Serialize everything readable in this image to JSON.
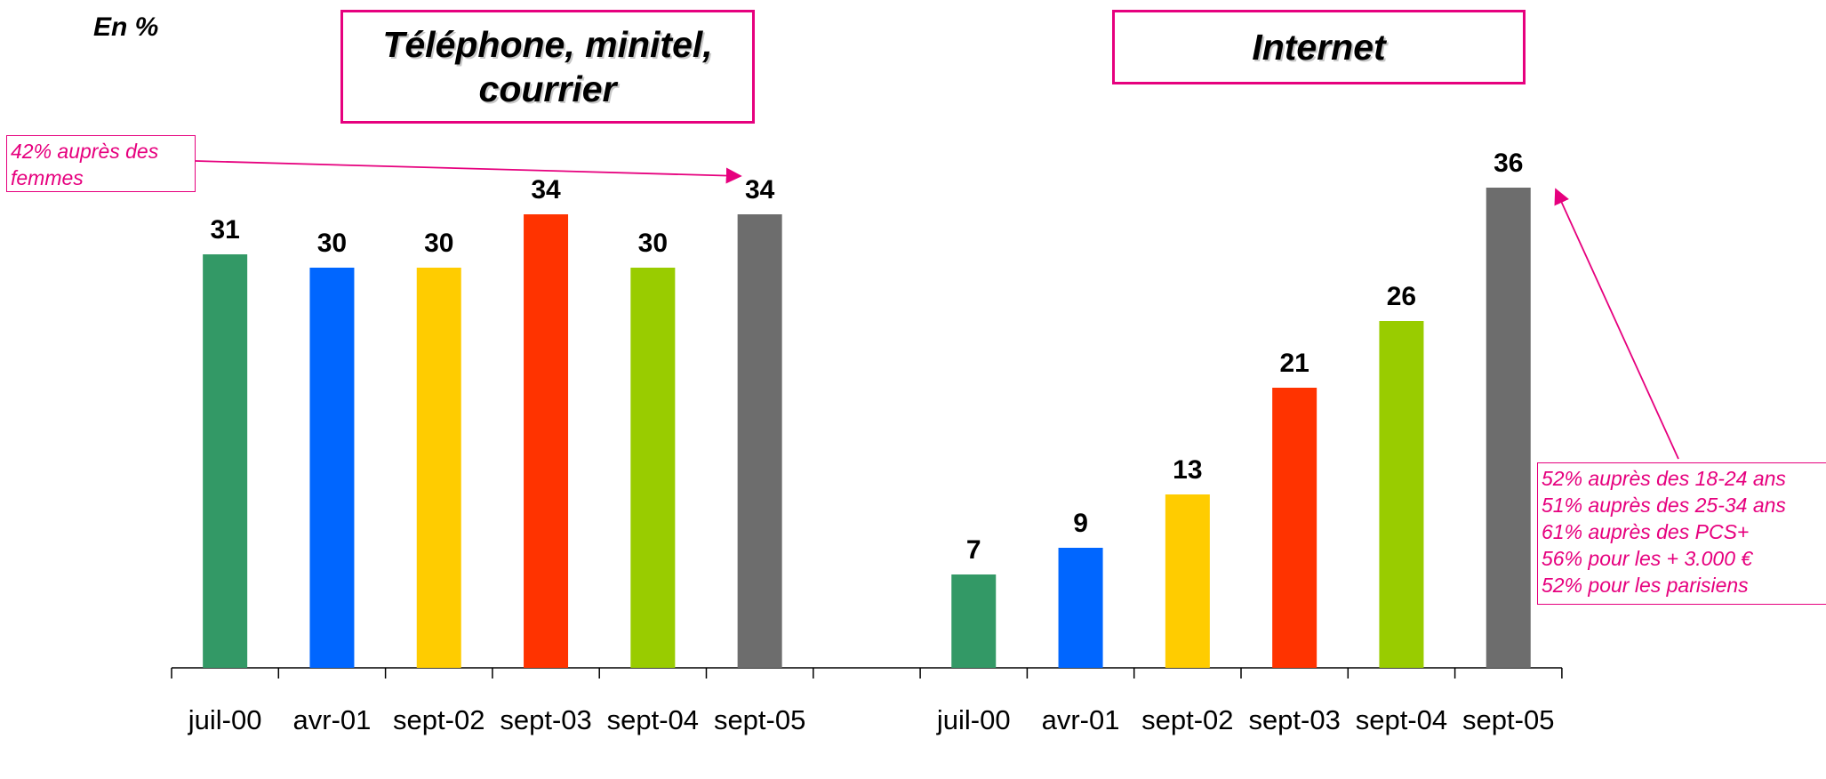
{
  "unit_label": "En %",
  "panel_titles": {
    "left": "Téléphone, minitel, courrier",
    "right": "Internet"
  },
  "annotations": {
    "left": [
      "42% auprès des",
      "femmes"
    ],
    "right": [
      "52% auprès des 18-24 ans",
      "51% auprès des 25-34 ans",
      "61% auprès des PCS+",
      "56% pour les + 3.000 €",
      "52% pour les parisiens"
    ]
  },
  "colors": {
    "juil-00": "#339966",
    "avr-01": "#0066ff",
    "sept-02": "#ffcc00",
    "sept-03": "#ff3300",
    "sept-04": "#99cc00",
    "sept-05": "#6d6d6d",
    "accent": "#e6007e"
  },
  "chart_data": {
    "type": "bar",
    "title": "",
    "xlabel": "",
    "ylabel": "",
    "ylim": [
      0,
      40
    ],
    "grid": false,
    "groups": [
      {
        "name": "Téléphone, minitel, courrier",
        "categories": [
          "juil-00",
          "avr-01",
          "sept-02",
          "sept-03",
          "sept-04",
          "sept-05"
        ],
        "values": [
          31,
          30,
          30,
          34,
          30,
          34
        ]
      },
      {
        "name": "Internet",
        "categories": [
          "juil-00",
          "avr-01",
          "sept-02",
          "sept-03",
          "sept-04",
          "sept-05"
        ],
        "values": [
          7,
          9,
          13,
          21,
          26,
          36
        ]
      }
    ]
  }
}
